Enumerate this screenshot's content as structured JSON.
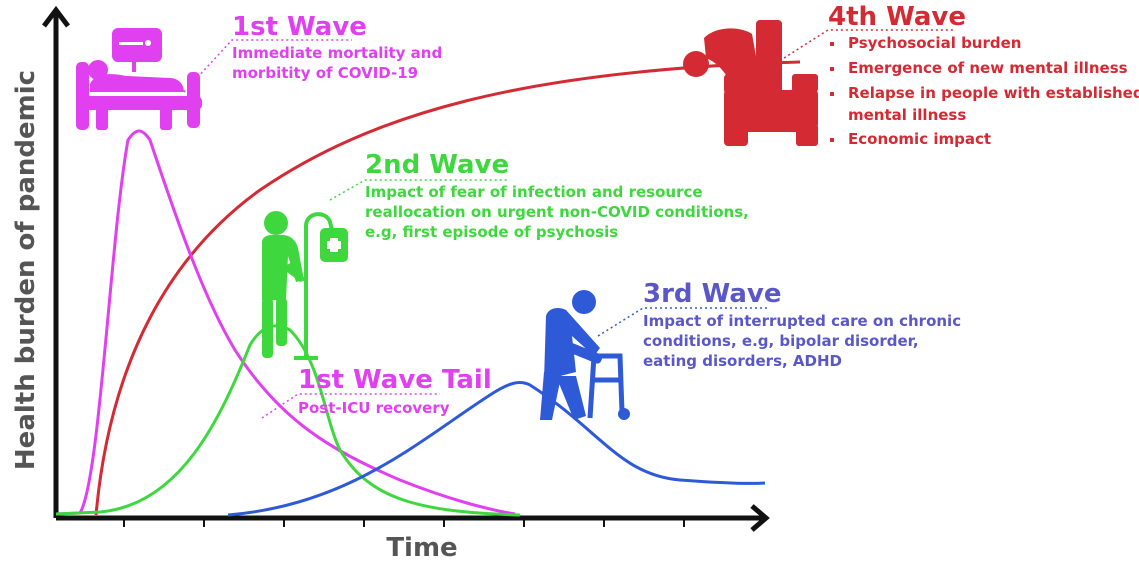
{
  "axes": {
    "y_label": "Health burden of pandemic",
    "x_label": "Time"
  },
  "colors": {
    "wave1": "#e040f0",
    "wave2": "#3ed83e",
    "wave3": "#2e5ad8",
    "wave4": "#d42a33",
    "axis": "#111111",
    "axis_label": "#555555",
    "title3": "#5a57c8"
  },
  "waves": {
    "wave1": {
      "title": "1st Wave",
      "desc": [
        "Immediate mortality and",
        "morbitity of COVID-19"
      ],
      "icon": "hospital-bed-patient-icon"
    },
    "wave1_tail": {
      "title": "1st Wave Tail",
      "desc": [
        "Post-ICU recovery"
      ]
    },
    "wave2": {
      "title": "2nd Wave",
      "desc": [
        "Impact of fear of infection and resource",
        "reallocation on urgent non-COVID conditions,",
        "e.g, first episode of psychosis"
      ],
      "icon": "patient-with-iv-drip-icon"
    },
    "wave3": {
      "title": "3rd Wave",
      "desc": [
        "Impact of interrupted care on chronic",
        "conditions, e.g, bipolar disorder,",
        "eating disorders, ADHD"
      ],
      "icon": "person-with-walker-icon"
    },
    "wave4": {
      "title": "4th Wave",
      "bullets": [
        "Psychosocial burden",
        "Emergence of new mental illness",
        "Relapse in people with established",
        "mental illness",
        "Economic impact"
      ],
      "icon": "distressed-person-sitting-icon"
    }
  }
}
